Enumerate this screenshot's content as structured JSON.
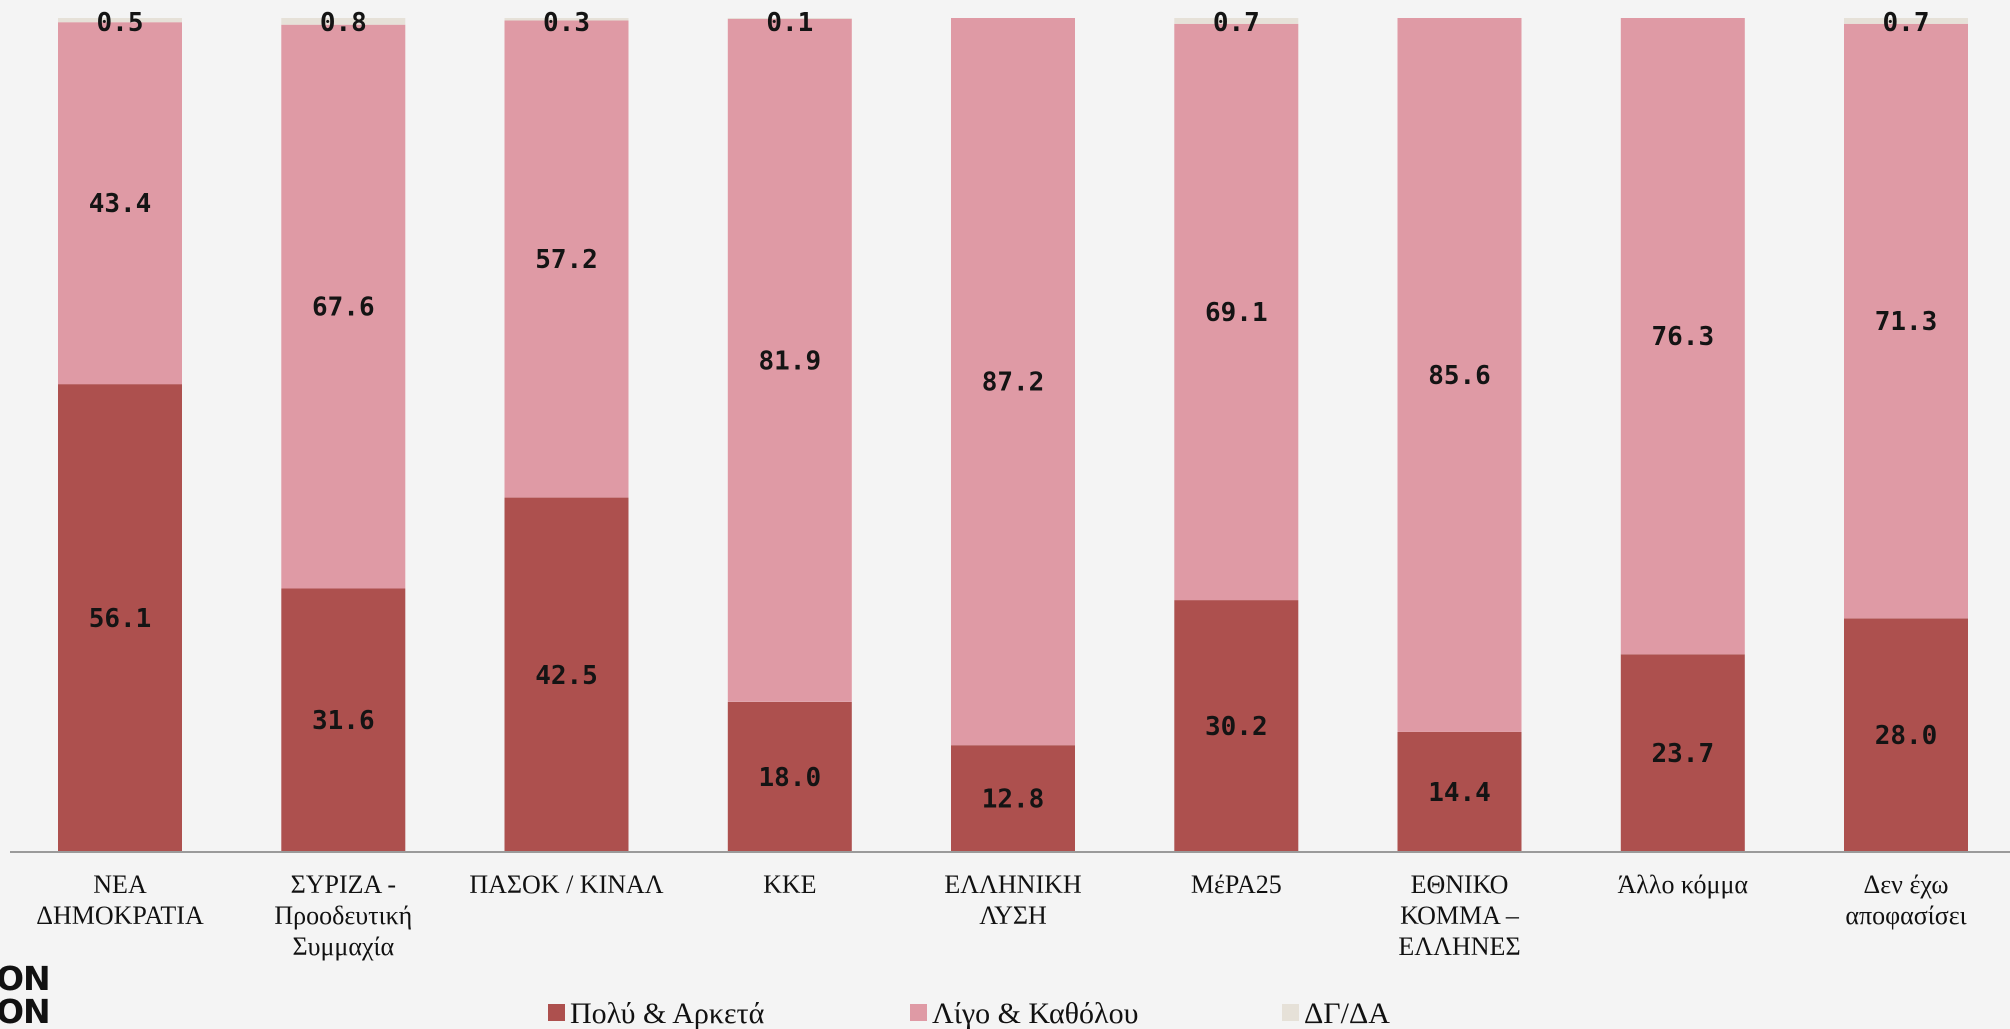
{
  "chart_data": {
    "type": "bar",
    "stacked": true,
    "categories": [
      [
        "ΝΕΑ",
        "ΔΗΜΟΚΡΑΤΙΑ"
      ],
      [
        "ΣΥΡΙΖΑ -",
        "Προοδευτική",
        "Συμμαχία"
      ],
      [
        "ΠΑΣΟΚ / ΚΙΝΑΛ"
      ],
      [
        "ΚΚΕ"
      ],
      [
        "ΕΛΛΗΝΙΚΗ",
        "ΛΥΣΗ"
      ],
      [
        "ΜέΡΑ25"
      ],
      [
        "ΕΘΝΙΚΟ",
        "ΚΟΜΜΑ –",
        "ΕΛΛΗΝΕΣ"
      ],
      [
        "Άλλο κόμμα"
      ],
      [
        "Δεν έχω",
        "αποφασίσει"
      ]
    ],
    "series": [
      {
        "name": "Πολύ & Αρκετά",
        "color": "#ad504e",
        "values": [
          56.1,
          31.6,
          42.5,
          18.0,
          12.8,
          30.2,
          14.4,
          23.7,
          28.0
        ],
        "labels": [
          "56.1",
          "31.6",
          "42.5",
          "18.0",
          "12.8",
          "30.2",
          "14.4",
          "23.7",
          "28.0"
        ]
      },
      {
        "name": "Λίγο & Καθόλου",
        "color": "#df9aa5",
        "values": [
          43.4,
          67.6,
          57.2,
          81.9,
          87.2,
          69.1,
          85.6,
          76.3,
          71.3
        ],
        "labels": [
          "43.4",
          "67.6",
          "57.2",
          "81.9",
          "87.2",
          "69.1",
          "85.6",
          "76.3",
          "71.3"
        ]
      },
      {
        "name": "ΔΓ/ΔΑ",
        "color": "#e6e1d8",
        "values": [
          0.5,
          0.8,
          0.3,
          0.1,
          0,
          0.7,
          0,
          0,
          0.7
        ],
        "labels": [
          "0.5",
          "0.8",
          "0.3",
          "0.1",
          "",
          "0.7",
          "",
          "",
          "0.7"
        ]
      }
    ],
    "ylim": [
      0,
      100
    ],
    "grid": false,
    "legend_position": "bottom",
    "title": "",
    "xlabel": "",
    "ylabel": ""
  },
  "logo": {
    "lines": [
      "ON",
      "ON"
    ]
  }
}
